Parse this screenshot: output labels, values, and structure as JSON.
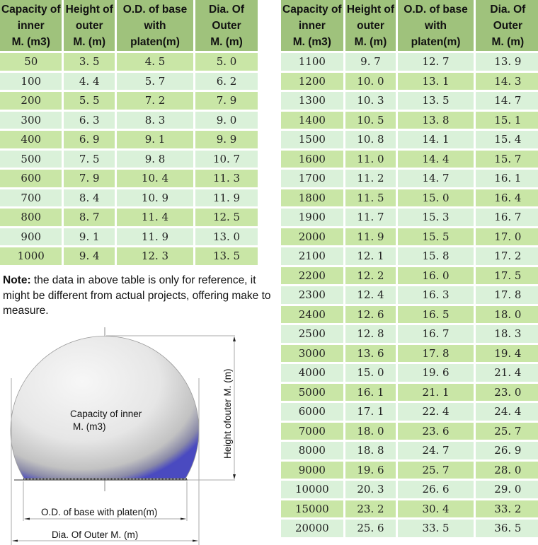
{
  "columns": [
    "Capacity of inner M. (m3)",
    "Height of outer M. (m)",
    "O.D. of base with platen(m)",
    "Dia. Of Outer M. (m)"
  ],
  "headers": {
    "capacity": [
      "Capacity of",
      "inner",
      "M. (m3)"
    ],
    "height": [
      "Height of",
      "outer",
      "M. (m)"
    ],
    "od": [
      "O.D. of base",
      "with",
      "platen(m)"
    ],
    "dia": [
      "Dia. Of",
      "Outer",
      "M. (m)"
    ]
  },
  "left_table": {
    "rows": [
      {
        "capacity": "50",
        "height": "3. 5",
        "od": "4. 5",
        "dia": "5. 0"
      },
      {
        "capacity": "100",
        "height": "4. 4",
        "od": "5. 7",
        "dia": "6. 2"
      },
      {
        "capacity": "200",
        "height": "5. 5",
        "od": "7. 2",
        "dia": "7. 9"
      },
      {
        "capacity": "300",
        "height": "6. 3",
        "od": "8. 3",
        "dia": "9. 0"
      },
      {
        "capacity": "400",
        "height": "6. 9",
        "od": "9. 1",
        "dia": "9. 9"
      },
      {
        "capacity": "500",
        "height": "7. 5",
        "od": "9. 8",
        "dia": "10. 7"
      },
      {
        "capacity": "600",
        "height": "7. 9",
        "od": "10. 4",
        "dia": "11. 3"
      },
      {
        "capacity": "700",
        "height": "8. 4",
        "od": "10. 9",
        "dia": "11. 9"
      },
      {
        "capacity": "800",
        "height": "8. 7",
        "od": "11. 4",
        "dia": "12. 5"
      },
      {
        "capacity": "900",
        "height": "9. 1",
        "od": "11. 9",
        "dia": "13. 0"
      },
      {
        "capacity": "1000",
        "height": "9. 4",
        "od": "12. 3",
        "dia": "13. 5"
      }
    ]
  },
  "right_table": {
    "rows": [
      {
        "capacity": "1100",
        "height": "9. 7",
        "od": "12. 7",
        "dia": "13. 9"
      },
      {
        "capacity": "1200",
        "height": "10. 0",
        "od": "13. 1",
        "dia": "14. 3"
      },
      {
        "capacity": "1300",
        "height": "10. 3",
        "od": "13. 5",
        "dia": "14. 7"
      },
      {
        "capacity": "1400",
        "height": "10. 5",
        "od": "13. 8",
        "dia": "15. 1"
      },
      {
        "capacity": "1500",
        "height": "10. 8",
        "od": "14. 1",
        "dia": "15. 4"
      },
      {
        "capacity": "1600",
        "height": "11. 0",
        "od": "14. 4",
        "dia": "15. 7"
      },
      {
        "capacity": "1700",
        "height": "11. 2",
        "od": "14. 7",
        "dia": "16. 1"
      },
      {
        "capacity": "1800",
        "height": "11. 5",
        "od": "15. 0",
        "dia": "16. 4"
      },
      {
        "capacity": "1900",
        "height": "11. 7",
        "od": "15. 3",
        "dia": "16. 7"
      },
      {
        "capacity": "2000",
        "height": "11. 9",
        "od": "15. 5",
        "dia": "17. 0"
      },
      {
        "capacity": "2100",
        "height": "12. 1",
        "od": "15. 8",
        "dia": "17. 2"
      },
      {
        "capacity": "2200",
        "height": "12. 2",
        "od": "16. 0",
        "dia": "17. 5"
      },
      {
        "capacity": "2300",
        "height": "12. 4",
        "od": "16. 3",
        "dia": "17. 8"
      },
      {
        "capacity": "2400",
        "height": "12. 6",
        "od": "16. 5",
        "dia": "18. 0"
      },
      {
        "capacity": "2500",
        "height": "12. 8",
        "od": "16. 7",
        "dia": "18. 3"
      },
      {
        "capacity": "3000",
        "height": "13. 6",
        "od": "17. 8",
        "dia": "19. 4"
      },
      {
        "capacity": "4000",
        "height": "15. 0",
        "od": "19. 6",
        "dia": "21. 4"
      },
      {
        "capacity": "5000",
        "height": "16. 1",
        "od": "21. 1",
        "dia": "23. 0"
      },
      {
        "capacity": "6000",
        "height": "17. 1",
        "od": "22. 4",
        "dia": "24. 4"
      },
      {
        "capacity": "7000",
        "height": "18. 0",
        "od": "23. 6",
        "dia": "25. 7"
      },
      {
        "capacity": "8000",
        "height": "18. 8",
        "od": "24. 7",
        "dia": "26. 9"
      },
      {
        "capacity": "9000",
        "height": "19. 6",
        "od": "25. 7",
        "dia": "28. 0"
      },
      {
        "capacity": "10000",
        "height": "20. 3",
        "od": "26. 6",
        "dia": "29. 0"
      },
      {
        "capacity": "15000",
        "height": "23. 2",
        "od": "30. 4",
        "dia": "33. 2"
      },
      {
        "capacity": "20000",
        "height": "25. 6",
        "od": "33. 5",
        "dia": "36. 5"
      }
    ]
  },
  "note": {
    "label": "Note:",
    "text": " the data in above table is only for reference, it might be different from actual projects, offering make to measure."
  },
  "diagram": {
    "capacity_label_line1": "Capacity of inner",
    "capacity_label_line2": "M. (m3)",
    "height_label": "Height ofouter M. (m)",
    "od_label": "O.D. of base with platen(m)",
    "dia_label": "Dia. Of Outer M. (m)"
  },
  "colors": {
    "header_bg": "#9fc27c",
    "row_odd_bg": "#c9e6a6",
    "row_even_bg": "#daf1d9"
  }
}
